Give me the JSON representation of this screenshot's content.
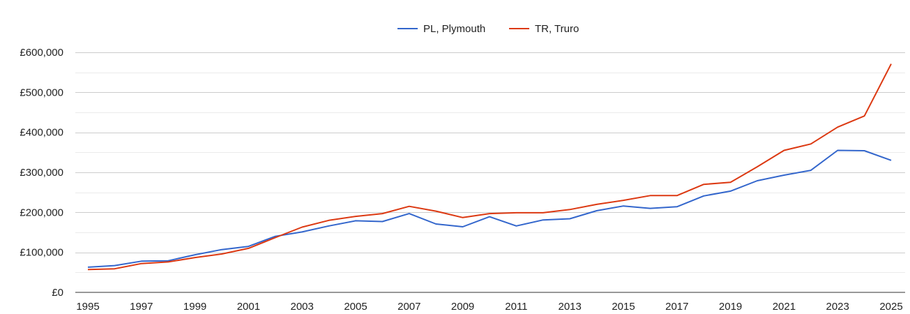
{
  "chart_data": {
    "type": "line",
    "title": "",
    "xlabel": "",
    "ylabel": "",
    "x": [
      1995,
      1996,
      1997,
      1998,
      1999,
      2000,
      2001,
      2002,
      2003,
      2004,
      2005,
      2006,
      2007,
      2008,
      2009,
      2010,
      2011,
      2012,
      2013,
      2014,
      2015,
      2016,
      2017,
      2018,
      2019,
      2020,
      2021,
      2022,
      2023,
      2024,
      2025
    ],
    "xlim": [
      1995,
      2025
    ],
    "ylim": [
      0,
      600000
    ],
    "x_ticks": [
      1995,
      1997,
      1999,
      2001,
      2003,
      2005,
      2007,
      2009,
      2011,
      2013,
      2015,
      2017,
      2019,
      2021,
      2023,
      2025
    ],
    "x_tick_labels": [
      "1995",
      "1997",
      "1999",
      "2001",
      "2003",
      "2005",
      "2007",
      "2009",
      "2011",
      "2013",
      "2015",
      "2017",
      "2019",
      "2021",
      "2023",
      "2025"
    ],
    "y_ticks": [
      0,
      100000,
      200000,
      300000,
      400000,
      500000,
      600000
    ],
    "y_tick_labels": [
      "£0",
      "£100,000",
      "£200,000",
      "£300,000",
      "£400,000",
      "£500,000",
      "£600,000"
    ],
    "minor_gridlines": [
      50000,
      150000,
      250000,
      350000,
      450000,
      550000
    ],
    "legend_position": "top-center",
    "series": [
      {
        "name": "PL, Plymouth",
        "color": "#3366cc",
        "values": [
          63000,
          67000,
          78000,
          79000,
          94000,
          107000,
          115000,
          140000,
          151000,
          166000,
          179000,
          177000,
          197000,
          171000,
          164000,
          189000,
          166000,
          181000,
          184000,
          204000,
          216000,
          210000,
          214000,
          241000,
          253000,
          279000,
          293000,
          305000,
          355000,
          354000,
          330000
        ]
      },
      {
        "name": "TR, Truro",
        "color": "#dc3912",
        "values": [
          57000,
          59000,
          72000,
          76000,
          87000,
          96000,
          110000,
          137000,
          163000,
          180000,
          190000,
          197000,
          215000,
          203000,
          187000,
          197000,
          199000,
          199000,
          207000,
          220000,
          230000,
          242000,
          242000,
          270000,
          275000,
          314000,
          355000,
          371000,
          413000,
          441000,
          571000
        ]
      }
    ]
  }
}
